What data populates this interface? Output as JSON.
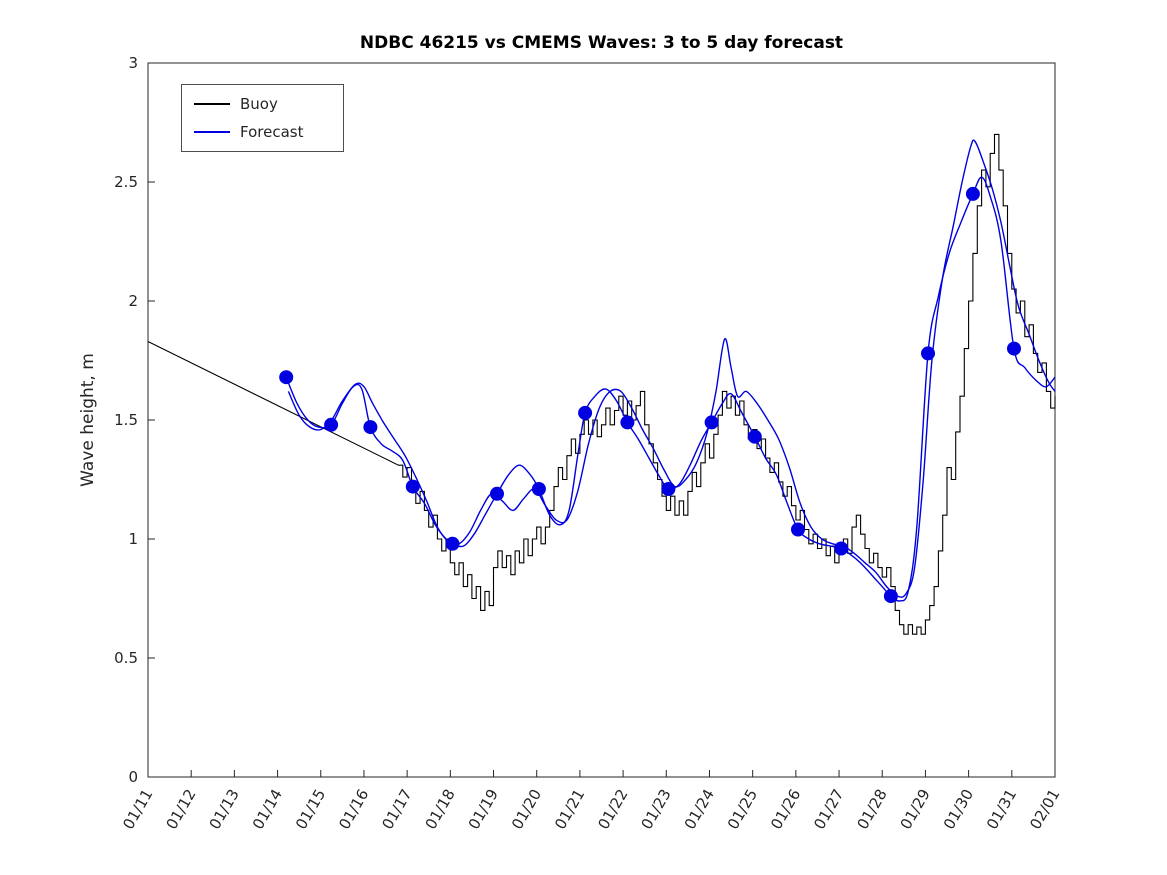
{
  "chart_data": {
    "type": "line",
    "title": "NDBC 46215 vs CMEMS Waves: 3 to 5 day forecast",
    "xlabel": "",
    "ylabel": "Wave height, m",
    "x_unit": "days since 01/11",
    "xlim_days": [
      0,
      21
    ],
    "ylim": [
      0,
      3
    ],
    "grid": false,
    "axis_color": "#262626",
    "x_tick_labels": [
      "01/11",
      "01/12",
      "01/13",
      "01/14",
      "01/15",
      "01/16",
      "01/17",
      "01/18",
      "01/19",
      "01/20",
      "01/21",
      "01/22",
      "01/23",
      "01/24",
      "01/25",
      "01/26",
      "01/27",
      "01/28",
      "01/29",
      "01/30",
      "01/31",
      "02/01"
    ],
    "y_ticks": [
      0,
      0.5,
      1,
      1.5,
      2,
      2.5,
      3
    ],
    "y_tick_labels": [
      "0",
      "0.5",
      "1",
      "1.5",
      "2",
      "2.5",
      "3"
    ],
    "legend": {
      "position": "top-left",
      "entries": [
        {
          "label": "Buoy",
          "color": "#000000"
        },
        {
          "label": "Forecast",
          "color": "#0000E0"
        }
      ]
    },
    "series": [
      {
        "name": "Buoy",
        "color": "#000000",
        "style": "stairs",
        "width": 1.1,
        "head": [
          [
            0,
            1.83
          ]
        ],
        "obs_x0": 5.8,
        "obs_dx": 0.1,
        "obs_values": [
          1.31,
          1.26,
          1.3,
          1.22,
          1.15,
          1.2,
          1.12,
          1.05,
          1.1,
          1.0,
          0.95,
          1.0,
          0.9,
          0.85,
          0.9,
          0.8,
          0.85,
          0.75,
          0.8,
          0.7,
          0.78,
          0.72,
          0.88,
          0.95,
          0.88,
          0.93,
          0.85,
          0.95,
          0.9,
          1.0,
          0.93,
          1.0,
          1.05,
          0.98,
          1.05,
          1.12,
          1.22,
          1.3,
          1.25,
          1.35,
          1.42,
          1.36,
          1.44,
          1.5,
          1.44,
          1.5,
          1.43,
          1.48,
          1.55,
          1.48,
          1.54,
          1.6,
          1.52,
          1.58,
          1.5,
          1.56,
          1.62,
          1.48,
          1.4,
          1.32,
          1.25,
          1.18,
          1.12,
          1.18,
          1.1,
          1.16,
          1.1,
          1.2,
          1.28,
          1.22,
          1.32,
          1.4,
          1.34,
          1.44,
          1.52,
          1.62,
          1.55,
          1.6,
          1.52,
          1.58,
          1.48,
          1.42,
          1.46,
          1.38,
          1.42,
          1.34,
          1.28,
          1.32,
          1.24,
          1.18,
          1.22,
          1.14,
          1.08,
          1.12,
          1.04,
          0.98,
          1.02,
          0.96,
          1.0,
          0.93,
          0.97,
          0.9,
          0.95,
          1.0,
          0.94,
          1.05,
          1.1,
          1.02,
          0.96,
          0.9,
          0.94,
          0.88,
          0.84,
          0.88,
          0.8,
          0.7,
          0.64,
          0.6,
          0.64,
          0.6,
          0.63,
          0.6,
          0.66,
          0.72,
          0.8,
          0.95,
          1.1,
          1.3,
          1.25,
          1.45,
          1.6,
          1.8,
          2.0,
          2.2,
          2.4,
          2.55,
          2.48,
          2.62,
          2.7,
          2.55,
          2.4,
          2.2,
          2.05,
          1.95,
          2.0,
          1.85,
          1.9,
          1.78,
          1.7,
          1.74,
          1.62,
          1.55,
          1.6
        ]
      },
      {
        "name": "Forecast",
        "color": "#0000E0",
        "style": "smooth",
        "width": 1.4,
        "points": [
          [
            3.2,
            1.68
          ],
          [
            3.45,
            1.57
          ],
          [
            3.7,
            1.5
          ],
          [
            3.95,
            1.47
          ],
          [
            4.24,
            1.48
          ],
          [
            4.5,
            1.57
          ],
          [
            4.75,
            1.64
          ],
          [
            4.95,
            1.63
          ],
          [
            5.15,
            1.47
          ],
          [
            5.4,
            1.4
          ],
          [
            5.65,
            1.37
          ],
          [
            5.9,
            1.33
          ],
          [
            6.13,
            1.22
          ],
          [
            6.4,
            1.15
          ],
          [
            6.65,
            1.06
          ],
          [
            6.9,
            1.0
          ],
          [
            7.05,
            0.98
          ],
          [
            7.3,
            0.97
          ],
          [
            7.55,
            1.02
          ],
          [
            7.8,
            1.1
          ],
          [
            8.08,
            1.19
          ],
          [
            8.35,
            1.27
          ],
          [
            8.6,
            1.31
          ],
          [
            8.85,
            1.27
          ],
          [
            9.05,
            1.21
          ],
          [
            9.3,
            1.1
          ],
          [
            9.55,
            1.06
          ],
          [
            9.75,
            1.12
          ],
          [
            9.95,
            1.35
          ],
          [
            10.12,
            1.53
          ],
          [
            10.35,
            1.6
          ],
          [
            10.6,
            1.63
          ],
          [
            10.85,
            1.58
          ],
          [
            11.1,
            1.49
          ],
          [
            11.35,
            1.42
          ],
          [
            11.6,
            1.34
          ],
          [
            11.85,
            1.26
          ],
          [
            12.05,
            1.21
          ],
          [
            12.3,
            1.23
          ],
          [
            12.55,
            1.31
          ],
          [
            12.8,
            1.41
          ],
          [
            13.05,
            1.49
          ],
          [
            13.3,
            1.57
          ],
          [
            13.5,
            1.61
          ],
          [
            13.75,
            1.53
          ],
          [
            14.05,
            1.43
          ],
          [
            14.3,
            1.34
          ],
          [
            14.55,
            1.27
          ],
          [
            14.8,
            1.15
          ],
          [
            15.05,
            1.04
          ],
          [
            15.3,
            1.0
          ],
          [
            15.55,
            0.98
          ],
          [
            15.8,
            0.97
          ],
          [
            16.05,
            0.96
          ],
          [
            16.3,
            0.93
          ],
          [
            16.55,
            0.89
          ],
          [
            16.8,
            0.84
          ],
          [
            17.0,
            0.8
          ],
          [
            17.2,
            0.76
          ],
          [
            17.4,
            0.74
          ],
          [
            17.6,
            0.78
          ],
          [
            17.8,
            1.05
          ],
          [
            18.06,
            1.78
          ],
          [
            18.3,
            2.02
          ],
          [
            18.55,
            2.2
          ],
          [
            18.8,
            2.32
          ],
          [
            19.1,
            2.45
          ],
          [
            19.3,
            2.52
          ],
          [
            19.5,
            2.44
          ],
          [
            19.75,
            2.25
          ],
          [
            20.05,
            1.8
          ],
          [
            20.3,
            1.72
          ],
          [
            20.6,
            1.66
          ],
          [
            20.8,
            1.64
          ],
          [
            21.0,
            1.68
          ]
        ]
      },
      {
        "name": "Forecast",
        "color": "#0000E0",
        "style": "smooth",
        "width": 1.4,
        "points": [
          [
            3.25,
            1.62
          ],
          [
            3.5,
            1.52
          ],
          [
            3.75,
            1.47
          ],
          [
            4.0,
            1.46
          ],
          [
            4.25,
            1.5
          ],
          [
            4.5,
            1.58
          ],
          [
            4.8,
            1.65
          ],
          [
            5.0,
            1.64
          ],
          [
            5.2,
            1.57
          ],
          [
            5.45,
            1.49
          ],
          [
            5.7,
            1.42
          ],
          [
            5.95,
            1.35
          ],
          [
            6.2,
            1.26
          ],
          [
            6.45,
            1.16
          ],
          [
            6.7,
            1.05
          ],
          [
            6.95,
            0.99
          ],
          [
            7.2,
            0.98
          ],
          [
            7.45,
            1.03
          ],
          [
            7.7,
            1.12
          ],
          [
            7.95,
            1.19
          ],
          [
            8.2,
            1.16
          ],
          [
            8.45,
            1.12
          ],
          [
            8.7,
            1.17
          ],
          [
            8.95,
            1.21
          ],
          [
            9.2,
            1.14
          ],
          [
            9.45,
            1.08
          ],
          [
            9.7,
            1.08
          ],
          [
            9.95,
            1.2
          ],
          [
            10.2,
            1.4
          ],
          [
            10.45,
            1.55
          ],
          [
            10.7,
            1.62
          ],
          [
            10.95,
            1.62
          ],
          [
            11.2,
            1.55
          ],
          [
            11.45,
            1.46
          ],
          [
            11.7,
            1.38
          ],
          [
            11.95,
            1.29
          ],
          [
            12.2,
            1.22
          ],
          [
            12.45,
            1.25
          ],
          [
            12.7,
            1.32
          ],
          [
            12.95,
            1.45
          ],
          [
            13.15,
            1.62
          ],
          [
            13.35,
            1.84
          ],
          [
            13.5,
            1.72
          ],
          [
            13.65,
            1.6
          ],
          [
            13.85,
            1.62
          ],
          [
            14.1,
            1.57
          ],
          [
            14.35,
            1.5
          ],
          [
            14.6,
            1.42
          ],
          [
            14.85,
            1.3
          ],
          [
            15.1,
            1.15
          ],
          [
            15.35,
            1.05
          ],
          [
            15.6,
            1.0
          ],
          [
            15.85,
            0.98
          ],
          [
            16.1,
            0.97
          ],
          [
            16.35,
            0.94
          ],
          [
            16.6,
            0.9
          ],
          [
            16.85,
            0.86
          ],
          [
            17.1,
            0.8
          ],
          [
            17.35,
            0.76
          ],
          [
            17.55,
            0.77
          ],
          [
            17.75,
            0.88
          ],
          [
            17.95,
            1.25
          ],
          [
            18.15,
            1.75
          ],
          [
            18.4,
            2.1
          ],
          [
            18.65,
            2.32
          ],
          [
            18.85,
            2.5
          ],
          [
            19.05,
            2.65
          ],
          [
            19.15,
            2.67
          ],
          [
            19.35,
            2.58
          ],
          [
            19.55,
            2.47
          ],
          [
            19.75,
            2.33
          ],
          [
            19.95,
            2.15
          ],
          [
            20.15,
            1.98
          ],
          [
            20.4,
            1.86
          ],
          [
            20.65,
            1.74
          ],
          [
            20.85,
            1.66
          ],
          [
            21.0,
            1.62
          ]
        ]
      }
    ],
    "markers": {
      "name": "Forecast daily points",
      "color": "#0000E0",
      "radius": 7,
      "points": [
        [
          3.2,
          1.68
        ],
        [
          4.24,
          1.48
        ],
        [
          5.15,
          1.47
        ],
        [
          6.13,
          1.22
        ],
        [
          7.05,
          0.98
        ],
        [
          8.08,
          1.19
        ],
        [
          9.05,
          1.21
        ],
        [
          10.12,
          1.53
        ],
        [
          11.1,
          1.49
        ],
        [
          12.05,
          1.21
        ],
        [
          13.05,
          1.49
        ],
        [
          14.05,
          1.43
        ],
        [
          15.05,
          1.04
        ],
        [
          16.05,
          0.96
        ],
        [
          17.2,
          0.76
        ],
        [
          18.06,
          1.78
        ],
        [
          19.1,
          2.45
        ],
        [
          20.05,
          1.8
        ]
      ]
    }
  }
}
